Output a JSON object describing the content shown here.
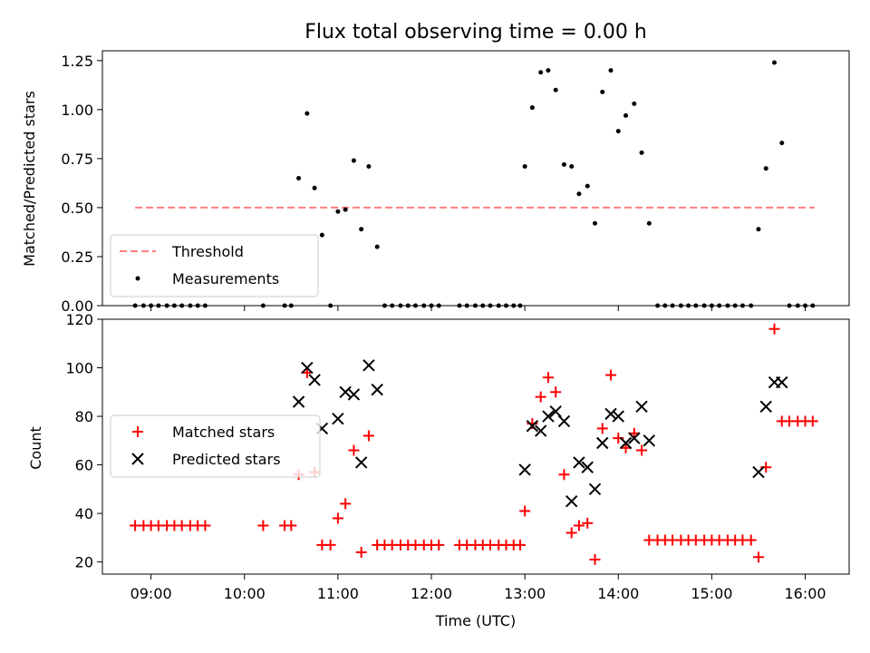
{
  "chart_data": {
    "title": "Flux total observing time = 0.00 h",
    "panels": [
      {
        "id": "ratio",
        "type": "scatter",
        "ylabel": "Matched/Predicted stars",
        "ylim": [
          0,
          1.3
        ],
        "yticks": [
          0.0,
          0.25,
          0.5,
          0.75,
          1.0,
          1.25
        ],
        "ytick_labels": [
          "0.00",
          "0.25",
          "0.50",
          "0.75",
          "1.00",
          "1.25"
        ],
        "legend_placement": "lower-left",
        "series": [
          {
            "name": "Threshold",
            "kind": "dashed-line",
            "color": "#ff7f7f",
            "x": [
              8.83,
              16.1
            ],
            "y": [
              0.5,
              0.5
            ]
          },
          {
            "name": "Measurements",
            "kind": "dots",
            "color": "#000000",
            "x": [
              8.83,
              8.92,
              9.0,
              9.08,
              9.17,
              9.25,
              9.33,
              9.42,
              9.5,
              9.58,
              10.2,
              10.43,
              10.5,
              10.58,
              10.67,
              10.75,
              10.83,
              10.92,
              11.0,
              11.08,
              11.17,
              11.25,
              11.33,
              11.42,
              11.5,
              11.58,
              11.67,
              11.75,
              11.83,
              11.92,
              12.0,
              12.08,
              12.3,
              12.38,
              12.47,
              12.55,
              12.63,
              12.72,
              12.8,
              12.88,
              12.95,
              13.0,
              13.08,
              13.17,
              13.25,
              13.33,
              13.42,
              13.5,
              13.58,
              13.67,
              13.75,
              13.83,
              13.92,
              14.0,
              14.08,
              14.17,
              14.25,
              14.33,
              14.42,
              14.5,
              14.58,
              14.67,
              14.75,
              14.83,
              14.92,
              15.0,
              15.08,
              15.17,
              15.25,
              15.33,
              15.42,
              15.5,
              15.58,
              15.67,
              15.75,
              15.83,
              15.92,
              16.0,
              16.08
            ],
            "y": [
              0,
              0,
              0,
              0,
              0,
              0,
              0,
              0,
              0,
              0,
              0,
              0,
              0,
              0.65,
              0.98,
              0.6,
              0.36,
              0,
              0.48,
              0.49,
              0.74,
              0.39,
              0.71,
              0.3,
              0,
              0,
              0,
              0,
              0,
              0,
              0,
              0,
              0,
              0,
              0,
              0,
              0,
              0,
              0,
              0,
              0,
              0.71,
              1.01,
              1.19,
              1.2,
              1.1,
              0.72,
              0.71,
              0.57,
              0.61,
              0.42,
              1.09,
              1.2,
              0.89,
              0.97,
              1.03,
              0.78,
              0.42,
              0,
              0,
              0,
              0,
              0,
              0,
              0,
              0,
              0,
              0,
              0,
              0,
              0,
              0.39,
              0.7,
              1.24,
              0.83,
              0,
              0,
              0,
              0
            ]
          }
        ]
      },
      {
        "id": "counts",
        "type": "scatter",
        "ylabel": "Count",
        "xlabel": "Time (UTC)",
        "xlim": [
          8.48,
          16.47
        ],
        "ylim": [
          15,
          120
        ],
        "yticks": [
          20,
          40,
          60,
          80,
          100,
          120
        ],
        "ytick_labels": [
          "20",
          "40",
          "60",
          "80",
          "100",
          "120"
        ],
        "xticks": [
          9,
          10,
          11,
          12,
          13,
          14,
          15,
          16
        ],
        "xtick_labels": [
          "09:00",
          "10:00",
          "11:00",
          "12:00",
          "13:00",
          "14:00",
          "15:00",
          "16:00"
        ],
        "legend_placement": "center-left",
        "series": [
          {
            "name": "Matched stars",
            "marker": "plus",
            "color": "#ff0000",
            "x": [
              8.83,
              8.92,
              9.0,
              9.08,
              9.17,
              9.25,
              9.33,
              9.42,
              9.5,
              9.58,
              10.2,
              10.43,
              10.5,
              10.58,
              10.67,
              10.75,
              10.83,
              10.92,
              11.0,
              11.08,
              11.17,
              11.25,
              11.33,
              11.42,
              11.5,
              11.58,
              11.67,
              11.75,
              11.83,
              11.92,
              12.0,
              12.08,
              12.3,
              12.38,
              12.47,
              12.55,
              12.63,
              12.72,
              12.8,
              12.88,
              12.95,
              13.0,
              13.08,
              13.17,
              13.25,
              13.33,
              13.42,
              13.5,
              13.58,
              13.67,
              13.75,
              13.83,
              13.92,
              14.0,
              14.08,
              14.17,
              14.25,
              14.33,
              14.42,
              14.5,
              14.58,
              14.67,
              14.75,
              14.83,
              14.92,
              15.0,
              15.08,
              15.17,
              15.25,
              15.33,
              15.42,
              15.5,
              15.58,
              15.67,
              15.75,
              15.83,
              15.92,
              16.0,
              16.08
            ],
            "y": [
              35,
              35,
              35,
              35,
              35,
              35,
              35,
              35,
              35,
              35,
              35,
              35,
              35,
              56,
              98,
              57,
              27,
              27,
              38,
              44,
              66,
              24,
              72,
              27,
              27,
              27,
              27,
              27,
              27,
              27,
              27,
              27,
              27,
              27,
              27,
              27,
              27,
              27,
              27,
              27,
              27,
              41,
              77,
              88,
              96,
              90,
              56,
              32,
              35,
              36,
              21,
              75,
              97,
              71,
              67,
              73,
              66,
              29,
              29,
              29,
              29,
              29,
              29,
              29,
              29,
              29,
              29,
              29,
              29,
              29,
              29,
              22,
              59,
              116,
              78,
              78,
              78,
              78,
              78
            ]
          },
          {
            "name": "Predicted stars",
            "marker": "x",
            "color": "#000000",
            "x": [
              10.58,
              10.67,
              10.75,
              10.83,
              11.0,
              11.08,
              11.17,
              11.25,
              11.33,
              11.42,
              13.0,
              13.08,
              13.17,
              13.25,
              13.33,
              13.42,
              13.5,
              13.58,
              13.67,
              13.75,
              13.83,
              13.92,
              14.0,
              14.08,
              14.17,
              14.25,
              14.33,
              15.5,
              15.58,
              15.67,
              15.75
            ],
            "y": [
              86,
              100,
              95,
              75,
              79,
              90,
              89,
              61,
              101,
              91,
              58,
              76,
              74,
              80,
              82,
              78,
              45,
              61,
              59,
              50,
              69,
              81,
              80,
              69,
              71,
              84,
              70,
              57,
              84,
              94,
              94
            ]
          }
        ]
      }
    ]
  }
}
